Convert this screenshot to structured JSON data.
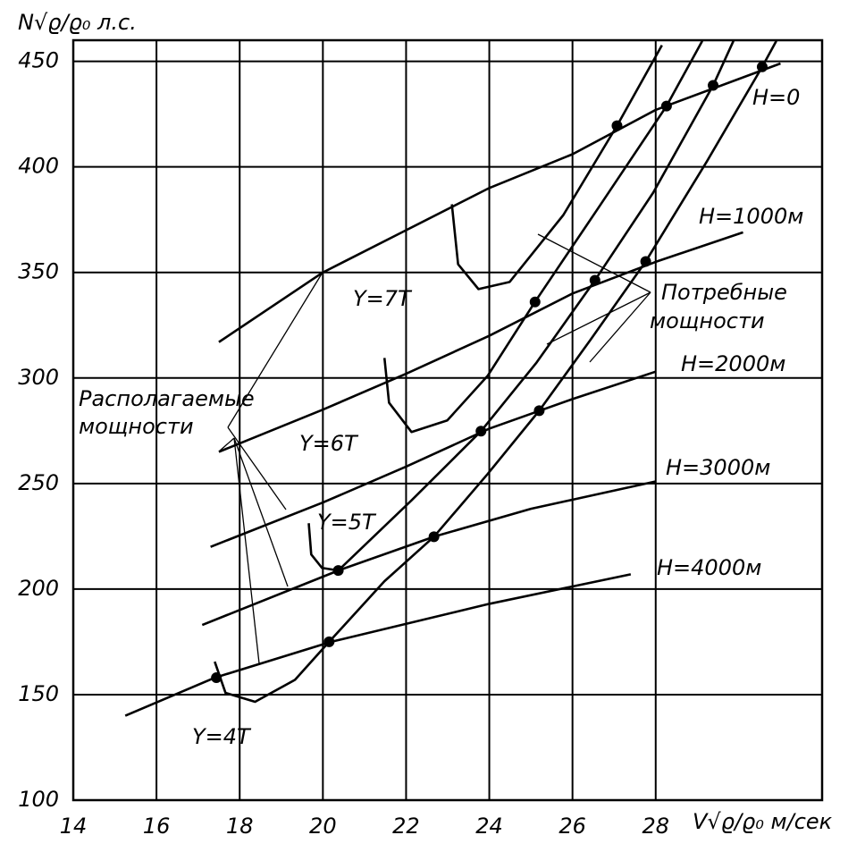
{
  "chart_data": {
    "type": "line",
    "ylabel": "N√ϱ/ϱ₀ л.с.",
    "xlabel": "V√ϱ/ϱ₀ м/сек",
    "xlim": [
      14,
      32
    ],
    "ylim": [
      100,
      460
    ],
    "xticks": [
      14,
      16,
      18,
      20,
      22,
      24,
      26,
      28
    ],
    "yticks": [
      100,
      150,
      200,
      250,
      300,
      350,
      400,
      450
    ],
    "grid": true,
    "color": "#000000",
    "series": [
      {
        "label": "H=0",
        "x": [
          17.5,
          20,
          22,
          24,
          26,
          28,
          31
        ],
        "values": [
          317,
          350,
          370,
          390,
          406,
          427,
          449
        ]
      },
      {
        "label": "H=1000м",
        "x": [
          17.5,
          20,
          22,
          24,
          26,
          28,
          30.1
        ],
        "values": [
          265,
          285,
          302,
          320,
          340,
          355,
          369
        ]
      },
      {
        "label": "H=2000м",
        "x": [
          17.3,
          20,
          22,
          24,
          26,
          28
        ],
        "values": [
          220,
          241,
          258,
          276,
          290,
          303
        ]
      },
      {
        "label": "H=3000м",
        "x": [
          17.1,
          20.4,
          22.7,
          25,
          28
        ],
        "values": [
          183,
          209,
          225,
          238,
          251
        ]
      },
      {
        "label": "H=4000м",
        "x": [
          15.25,
          17.4,
          20.2,
          24,
          27.4
        ],
        "values": [
          140,
          158,
          175,
          193,
          207
        ]
      },
      {
        "label": "Y=4T",
        "x": [
          17.4,
          17.66,
          18.37,
          19.33,
          20.15,
          21.48,
          22.67,
          23.96,
          25.2,
          26.43,
          27.76,
          29.23,
          30.56,
          30.9
        ],
        "values": [
          165.6,
          150.8,
          146.6,
          157,
          175,
          203.7,
          224.8,
          254.5,
          284.5,
          318,
          355.2,
          402.6,
          447.4,
          459.7
        ]
      },
      {
        "label": "Y=5T",
        "x": [
          19.66,
          19.72,
          19.98,
          20.37,
          22.13,
          23.8,
          25.14,
          26.54,
          27.94,
          29.38,
          29.87
        ],
        "values": [
          231.2,
          216.4,
          210,
          208.8,
          242,
          274.8,
          307.4,
          346.3,
          387.8,
          438.6,
          459.7
        ]
      },
      {
        "label": "Y=6T",
        "x": [
          21.48,
          21.59,
          22.13,
          22.99,
          23.96,
          25.1,
          26.65,
          28.26,
          29.12
        ],
        "values": [
          309.5,
          288.3,
          274.4,
          279.9,
          301,
          336.1,
          381.4,
          428.8,
          459.7
        ]
      },
      {
        "label": "Y=7T",
        "x": [
          23.1,
          23.25,
          23.74,
          24.49,
          25.78,
          27.07,
          28.15
        ],
        "values": [
          382.3,
          353.9,
          342.1,
          345.5,
          377.2,
          419.5,
          457.6
        ]
      }
    ],
    "points": {
      "x": [
        27.07,
        28.26,
        29.38,
        30.56,
        25.1,
        26.54,
        27.76,
        23.8,
        25.2,
        20.37,
        22.67,
        17.44,
        20.15
      ],
      "y": [
        419.5,
        428.8,
        438.6,
        447.4,
        336,
        346.3,
        355.2,
        274.8,
        284.5,
        208.8,
        224.8,
        158,
        175
      ]
    },
    "annotations": [
      {
        "lines": [
          "Располагаемые",
          "мощности"
        ]
      },
      {
        "lines": [
          "Потребные",
          "мощности"
        ]
      }
    ]
  }
}
